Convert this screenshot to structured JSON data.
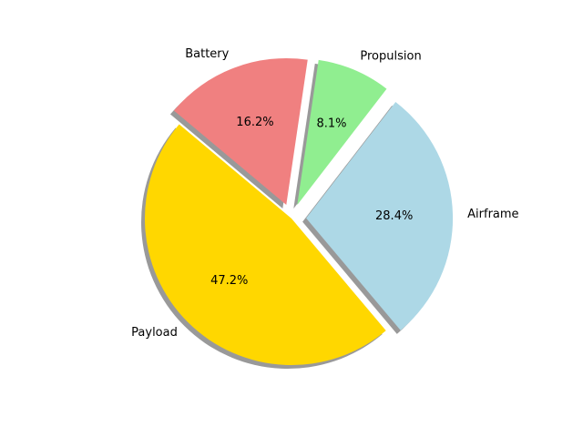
{
  "chart_data": {
    "type": "pie",
    "title": "",
    "slices": [
      {
        "label": "Payload",
        "value": 47.2,
        "pct_text": "47.2%",
        "color": "#ffd700",
        "explode": 0.0
      },
      {
        "label": "Airframe",
        "value": 28.4,
        "pct_text": "28.4%",
        "color": "#add8e6",
        "explode": 0.1
      },
      {
        "label": "Propulsion",
        "value": 8.1,
        "pct_text": "8.1%",
        "color": "#90ee90",
        "explode": 0.1
      },
      {
        "label": "Battery",
        "value": 16.2,
        "pct_text": "16.2%",
        "color": "#f08080",
        "explode": 0.1
      }
    ],
    "start_angle_deg": 140,
    "direction": "counterclockwise",
    "shadow": true,
    "legend": "none"
  }
}
